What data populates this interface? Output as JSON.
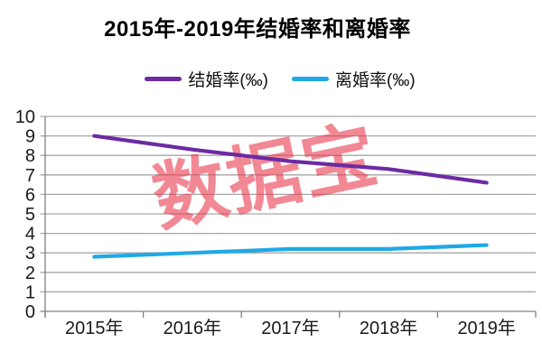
{
  "title": "2015年-2019年结婚率和离婚率",
  "watermark": "数据宝",
  "legend": [
    {
      "label": "结婚率(‰)",
      "color": "#6C2BA2"
    },
    {
      "label": "离婚率(‰)",
      "color": "#21A8E6"
    }
  ],
  "chart_data": {
    "type": "line",
    "title": "2015年-2019年结婚率和离婚率",
    "categories": [
      "2015年",
      "2016年",
      "2017年",
      "2018年",
      "2019年"
    ],
    "series": [
      {
        "name": "结婚率(‰)",
        "color": "#6C2BA2",
        "values": [
          9.0,
          8.3,
          7.7,
          7.3,
          6.6
        ]
      },
      {
        "name": "离婚率(‰)",
        "color": "#21A8E6",
        "values": [
          2.8,
          3.0,
          3.2,
          3.2,
          3.4
        ]
      }
    ],
    "xlabel": "",
    "ylabel": "",
    "ylim": [
      0,
      10
    ],
    "yticks": [
      0,
      1,
      2,
      3,
      4,
      5,
      6,
      7,
      8,
      9,
      10
    ],
    "grid": true,
    "legend_position": "top",
    "watermark": "数据宝"
  },
  "style": {
    "grid_color": "#A6A6A6",
    "axis_color": "#808080",
    "label_color": "#1A1A1A",
    "watermark_color": "#EA384C",
    "watermark_opacity": "0.6"
  }
}
